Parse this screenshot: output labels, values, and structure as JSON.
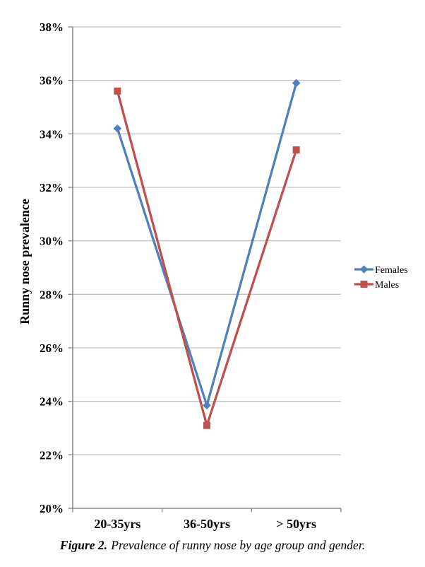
{
  "chart_data": {
    "type": "line",
    "title": "",
    "xlabel": "",
    "ylabel": "Runny nose prevalence",
    "categories": [
      "20-35yrs",
      "36-50yrs",
      "> 50yrs"
    ],
    "series": [
      {
        "name": "Females",
        "color": "#4F81BD",
        "marker": "diamond",
        "values": [
          34.2,
          23.85,
          35.9
        ]
      },
      {
        "name": "Males",
        "color": "#C0504D",
        "marker": "square",
        "values": [
          35.6,
          23.1,
          33.4
        ]
      }
    ],
    "ylim": [
      20,
      38
    ],
    "yticks": [
      20,
      22,
      24,
      26,
      28,
      30,
      32,
      34,
      36,
      38
    ],
    "ytick_suffix": "%",
    "grid": true,
    "legend_position": "right",
    "legend_entries": [
      "Females",
      "Males"
    ]
  },
  "caption": {
    "label": "Figure 2.",
    "text": "Prevalence of runny nose by age group and gender."
  },
  "colors": {
    "grid": "#C3C3C3",
    "axis": "#8C8C8C",
    "text": "#000000",
    "background": "#FFFFFF"
  }
}
